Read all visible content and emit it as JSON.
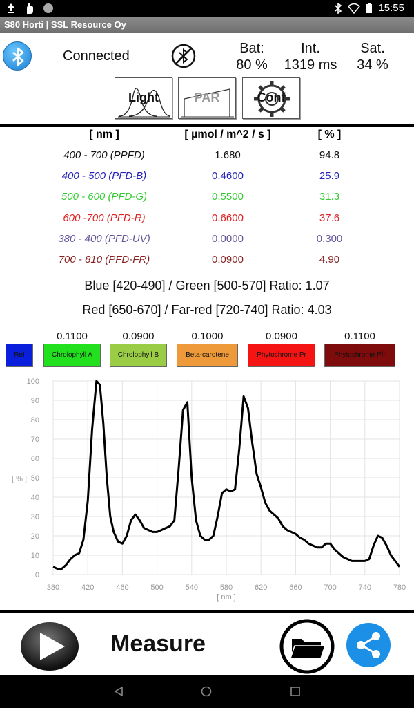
{
  "statusbar": {
    "time": "15:55"
  },
  "titlebar": {
    "title": "S80 Horti  |  SSL Resource Oy"
  },
  "header": {
    "connection_status": "Connected",
    "bat_label": "Bat:",
    "bat_value": "80 %",
    "int_label": "Int.",
    "int_value": "1319 ms",
    "sat_label": "Sat.",
    "sat_value": "34 %"
  },
  "tools": {
    "light": "Light",
    "par": "PAR",
    "conf": "Conf"
  },
  "table": {
    "headers": [
      "[ nm ]",
      "[ µmol / m^2 / s ]",
      "[ % ]"
    ],
    "rows": [
      {
        "range": "400 - 700 (PPFD)",
        "value": "1.680",
        "percent": "94.8",
        "color": "#111111"
      },
      {
        "range": "400 - 500 (PFD-B)",
        "value": "0.4600",
        "percent": "25.9",
        "color": "#2222bb"
      },
      {
        "range": "500 - 600 (PFD-G)",
        "value": "0.5500",
        "percent": "31.3",
        "color": "#33cc33"
      },
      {
        "range": "600 -700 (PFD-R)",
        "value": "0.6600",
        "percent": "37.6",
        "color": "#dd2222"
      },
      {
        "range": "380 - 400 (PFD-UV)",
        "value": "0.0000",
        "percent": "0.300",
        "color": "#665599"
      },
      {
        "range": "700 - 810 (PFD-FR)",
        "value": "0.0900",
        "percent": "4.90",
        "color": "#882222"
      }
    ]
  },
  "ratios": {
    "blue_green": "Blue [420-490] / Green [500-570] Ratio:  1.07",
    "red_farred": "Red [650-670] / Far-red [720-740] Ratio:  4.03"
  },
  "pigments": [
    {
      "label": "Ref",
      "value": "",
      "color": "#0a1fdc"
    },
    {
      "label": "Chrolophyll A",
      "value": "0.1100",
      "color": "#22e01e"
    },
    {
      "label": "Chrolophyll B",
      "value": "0.0900",
      "color": "#9acd45"
    },
    {
      "label": "Beta-carotene",
      "value": "0.1000",
      "color": "#ee9a3a"
    },
    {
      "label": "Phytochrome Pr",
      "value": "0.0900",
      "color": "#f41414"
    },
    {
      "label": "Phytochrome Pfr",
      "value": "0.1100",
      "color": "#7e0c0c"
    }
  ],
  "chart_data": {
    "type": "line",
    "xlabel": "[ nm ]",
    "ylabel": "[ % ]",
    "xlim": [
      380,
      780
    ],
    "ylim": [
      0,
      100
    ],
    "xticks": [
      380,
      420,
      460,
      500,
      540,
      580,
      620,
      660,
      700,
      740,
      780
    ],
    "yticks": [
      0,
      10,
      20,
      30,
      40,
      50,
      60,
      70,
      80,
      90,
      100
    ],
    "grid": true,
    "series": [
      {
        "x": [
          380,
          385,
          390,
          395,
          400,
          405,
          410,
          415,
          420,
          425,
          430,
          434,
          438,
          442,
          446,
          450,
          455,
          460,
          465,
          470,
          475,
          480,
          485,
          490,
          495,
          500,
          505,
          510,
          515,
          520,
          525,
          530,
          535,
          540,
          545,
          550,
          555,
          560,
          565,
          570,
          575,
          580,
          585,
          590,
          595,
          600,
          605,
          610,
          615,
          620,
          625,
          630,
          635,
          640,
          645,
          650,
          655,
          660,
          665,
          670,
          675,
          680,
          685,
          690,
          695,
          700,
          705,
          710,
          715,
          720,
          725,
          730,
          735,
          740,
          745,
          750,
          755,
          760,
          765,
          770,
          775,
          780
        ],
        "values": [
          4,
          3,
          3,
          5,
          8,
          10,
          11,
          18,
          38,
          75,
          100,
          98,
          78,
          50,
          30,
          22,
          17,
          16,
          20,
          28,
          31,
          28,
          24,
          23,
          22,
          22,
          23,
          24,
          25,
          28,
          55,
          85,
          89,
          50,
          28,
          20,
          18,
          18,
          20,
          30,
          42,
          44,
          43,
          44,
          65,
          92,
          86,
          68,
          52,
          45,
          37,
          33,
          31,
          29,
          25,
          23,
          22,
          21,
          19,
          18,
          16,
          15,
          14,
          14,
          16,
          16,
          13,
          11,
          9,
          8,
          7,
          7,
          7,
          7,
          8,
          15,
          20,
          19,
          15,
          10,
          7,
          4
        ]
      }
    ]
  },
  "bottom": {
    "measure_label": "Measure"
  }
}
